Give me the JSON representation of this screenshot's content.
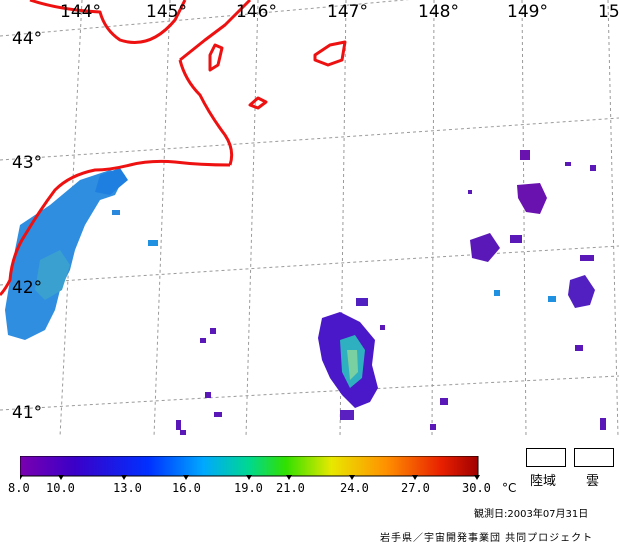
{
  "map": {
    "lon_labels": [
      "144°",
      "145°",
      "146°",
      "147°",
      "148°",
      "149°",
      "15"
    ],
    "lat_labels": [
      "44°",
      "43°",
      "42°",
      "41°"
    ],
    "coastline_color": "#ee1111",
    "grid_color": "#999999"
  },
  "legend": {
    "ticks": [
      "8.0",
      "10.0",
      "13.0",
      "16.0",
      "19.0",
      "21.0",
      "24.0",
      "27.0",
      "30.0"
    ],
    "unit": "°C",
    "gradient_colors": [
      "#6a00a8",
      "#1a00c8",
      "#0050ff",
      "#00c0ff",
      "#00e070",
      "#a0e000",
      "#f0e000",
      "#ff8000",
      "#e02000",
      "#b00000"
    ],
    "key_land": "陸域",
    "key_cloud": "雲"
  },
  "footer": {
    "observation_date": "観測日:2003年07月31日",
    "credit": "岩手県／宇宙開発事業団 共同プロジェクト"
  }
}
